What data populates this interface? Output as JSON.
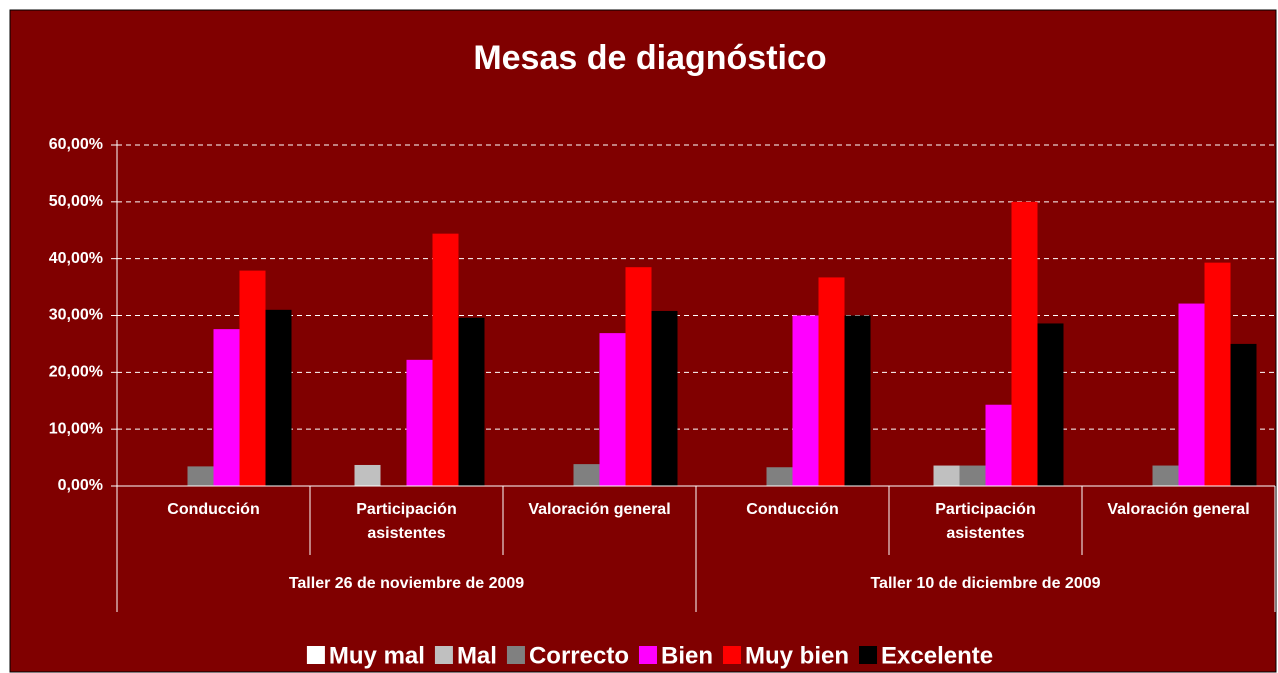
{
  "chart_data": {
    "type": "bar",
    "title": "Mesas de diagnóstico",
    "groups": [
      "Taller 26 de noviembre de 2009",
      "Taller 10 de diciembre de 2009"
    ],
    "categories": [
      "Conducción",
      "Participación asistentes",
      "Valoración general",
      "Conducción",
      "Participación asistentes",
      "Valoración general"
    ],
    "series": [
      {
        "name": "Muy mal",
        "color": "#ffffff",
        "values": [
          0,
          0,
          0,
          0,
          0,
          0
        ]
      },
      {
        "name": "Mal",
        "color": "#c0c0c0",
        "values": [
          0,
          3.7,
          0,
          0,
          3.6,
          0
        ]
      },
      {
        "name": "Correcto",
        "color": "#808080",
        "values": [
          3.45,
          0,
          3.85,
          3.3,
          3.6,
          3.6
        ]
      },
      {
        "name": "Bien",
        "color": "#ff00ff",
        "values": [
          27.6,
          22.2,
          26.9,
          30.0,
          14.3,
          32.1
        ]
      },
      {
        "name": "Muy bien",
        "color": "#ff0000",
        "values": [
          37.9,
          44.4,
          38.5,
          36.7,
          50.0,
          39.3
        ]
      },
      {
        "name": "Excelente",
        "color": "#000000",
        "values": [
          31.0,
          29.6,
          30.8,
          30.0,
          28.6,
          25.0
        ]
      }
    ],
    "ylim": [
      0,
      60
    ],
    "yticks": [
      {
        "value": 0,
        "label": "0,00%"
      },
      {
        "value": 10,
        "label": "10,00%"
      },
      {
        "value": 20,
        "label": "20,00%"
      },
      {
        "value": 30,
        "label": "30,00%"
      },
      {
        "value": 40,
        "label": "40,00%"
      },
      {
        "value": 50,
        "label": "50,00%"
      },
      {
        "value": 60,
        "label": "60,00%"
      }
    ],
    "grid": true,
    "legend": "bottom"
  }
}
